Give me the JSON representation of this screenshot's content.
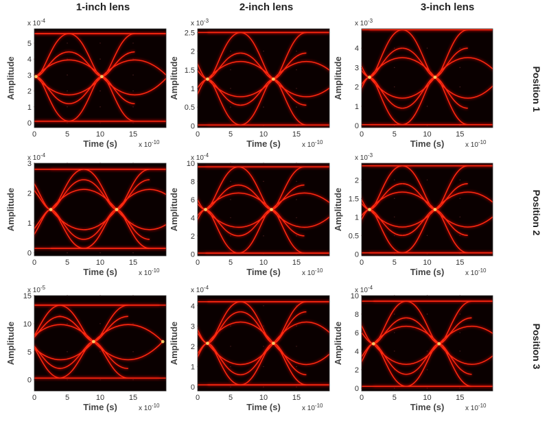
{
  "column_titles": [
    "1-inch lens",
    "2-inch lens",
    "3-inch lens"
  ],
  "row_titles": [
    "Position 1",
    "Position 2",
    "Position 3"
  ],
  "chart_data": [
    {
      "type": "eye-diagram",
      "panel": "row1-col1",
      "xlabel": "Time (s)",
      "ylabel": "Amplitude",
      "x_multiplier": "x 10",
      "x_exp": "-10",
      "y_multiplier": "x 10",
      "y_exp": "-4",
      "xlim": [
        0,
        20
      ],
      "ylim": [
        -0.3,
        5.9
      ],
      "xticks": [
        0,
        5,
        10,
        15
      ],
      "yticks": [
        0,
        1,
        2,
        3,
        4,
        5
      ],
      "levels": [
        0.1,
        1.2,
        4.45,
        5.6
      ],
      "crossings": [
        0.25,
        10.25,
        20.25
      ],
      "crossing_level": 2.9,
      "color": "#ff2a10"
    },
    {
      "type": "eye-diagram",
      "panel": "row1-col2",
      "xlabel": "Time (s)",
      "ylabel": "Amplitude",
      "x_multiplier": "x 10",
      "x_exp": "-10",
      "y_multiplier": "x 10",
      "y_exp": "-3",
      "xlim": [
        0,
        20
      ],
      "ylim": [
        -0.05,
        2.6
      ],
      "xticks": [
        0,
        5,
        10,
        15
      ],
      "yticks": [
        0,
        0.5,
        1,
        1.5,
        2,
        2.5
      ],
      "levels": [
        0.02,
        0.55,
        1.95,
        2.5
      ],
      "crossings": [
        1.5,
        11.5,
        21.5
      ],
      "crossing_level": 1.25,
      "color": "#ff2a10"
    },
    {
      "type": "eye-diagram",
      "panel": "row1-col3",
      "xlabel": "Time (s)",
      "ylabel": "Amplitude",
      "x_multiplier": "x 10",
      "x_exp": "-10",
      "y_multiplier": "x 10",
      "y_exp": "-3",
      "xlim": [
        0,
        20
      ],
      "ylim": [
        -0.1,
        5.0
      ],
      "xticks": [
        0,
        5,
        10,
        15
      ],
      "yticks": [
        0,
        1,
        2,
        3,
        4
      ],
      "levels": [
        0.05,
        0.9,
        4.0,
        4.95
      ],
      "crossings": [
        1.2,
        11.2,
        21.2
      ],
      "crossing_level": 2.5,
      "color": "#ff2a10"
    },
    {
      "type": "eye-diagram",
      "panel": "row2-col1",
      "xlabel": "Time (s)",
      "ylabel": "Amplitude",
      "x_multiplier": "x 10",
      "x_exp": "-10",
      "y_multiplier": "x 10",
      "y_exp": "-4",
      "xlim": [
        0,
        20
      ],
      "ylim": [
        -0.1,
        3.0
      ],
      "xticks": [
        0,
        5,
        10,
        15
      ],
      "yticks": [
        0,
        1,
        2,
        3
      ],
      "levels": [
        0.15,
        0.45,
        2.45,
        2.8
      ],
      "crossings": [
        2.5,
        12.5,
        22.5
      ],
      "crossing_level": 1.45,
      "color": "#ff2a10"
    },
    {
      "type": "eye-diagram",
      "panel": "row2-col2",
      "xlabel": "Time (s)",
      "ylabel": "Amplitude",
      "x_multiplier": "x 10",
      "x_exp": "-10",
      "y_multiplier": "x 10",
      "y_exp": "-4",
      "xlim": [
        0,
        20
      ],
      "ylim": [
        -0.2,
        10
      ],
      "xticks": [
        0,
        5,
        10,
        15
      ],
      "yticks": [
        0,
        2,
        4,
        6,
        8,
        10
      ],
      "levels": [
        0.1,
        2.0,
        7.6,
        9.6
      ],
      "crossings": [
        1.2,
        11.2,
        21.2
      ],
      "crossing_level": 4.9,
      "color": "#ff2a10"
    },
    {
      "type": "eye-diagram",
      "panel": "row2-col3",
      "xlabel": "Time (s)",
      "ylabel": "Amplitude",
      "x_multiplier": "x 10",
      "x_exp": "-10",
      "y_multiplier": "x 10",
      "y_exp": "-3",
      "xlim": [
        0,
        20
      ],
      "ylim": [
        -0.05,
        2.45
      ],
      "xticks": [
        0,
        5,
        10,
        15
      ],
      "yticks": [
        0,
        0.5,
        1,
        1.5,
        2
      ],
      "levels": [
        0.03,
        0.5,
        1.9,
        2.38
      ],
      "crossings": [
        1.2,
        11.2,
        21.2
      ],
      "crossing_level": 1.2,
      "color": "#ff2a10"
    },
    {
      "type": "eye-diagram",
      "panel": "row3-col1",
      "xlabel": "Time (s)",
      "ylabel": "Amplitude",
      "x_multiplier": "x 10",
      "x_exp": "-10",
      "y_multiplier": "x 10",
      "y_exp": "-5",
      "xlim": [
        0,
        20
      ],
      "ylim": [
        -2,
        15
      ],
      "xticks": [
        0,
        5,
        10,
        15
      ],
      "yticks": [
        0,
        5,
        10,
        15
      ],
      "levels": [
        0.3,
        2.0,
        11.3,
        13.3
      ],
      "crossings": [
        -1.0,
        9.0,
        19.5
      ],
      "crossing_level": 6.8,
      "color": "#ff2a10"
    },
    {
      "type": "eye-diagram",
      "panel": "row3-col2",
      "xlabel": "Time (s)",
      "ylabel": "Amplitude",
      "x_multiplier": "x 10",
      "x_exp": "-10",
      "y_multiplier": "x 10",
      "y_exp": "-4",
      "xlim": [
        0,
        20
      ],
      "ylim": [
        -0.2,
        4.5
      ],
      "xticks": [
        0,
        5,
        10,
        15
      ],
      "yticks": [
        0,
        1,
        2,
        3,
        4
      ],
      "levels": [
        0.1,
        0.6,
        3.7,
        4.2
      ],
      "crossings": [
        1.5,
        11.5,
        21.5
      ],
      "crossing_level": 2.15,
      "color": "#ff2a10"
    },
    {
      "type": "eye-diagram",
      "panel": "row3-col3",
      "xlabel": "Time (s)",
      "ylabel": "Amplitude",
      "x_multiplier": "x 10",
      "x_exp": "-10",
      "y_multiplier": "x 10",
      "y_exp": "-4",
      "xlim": [
        0,
        20
      ],
      "ylim": [
        -0.3,
        10
      ],
      "xticks": [
        0,
        5,
        10,
        15
      ],
      "yticks": [
        0,
        2,
        4,
        6,
        8,
        10
      ],
      "levels": [
        0.2,
        1.5,
        7.6,
        9.4
      ],
      "crossings": [
        1.8,
        11.8,
        21.8
      ],
      "crossing_level": 4.8,
      "color": "#ff2a10"
    }
  ]
}
